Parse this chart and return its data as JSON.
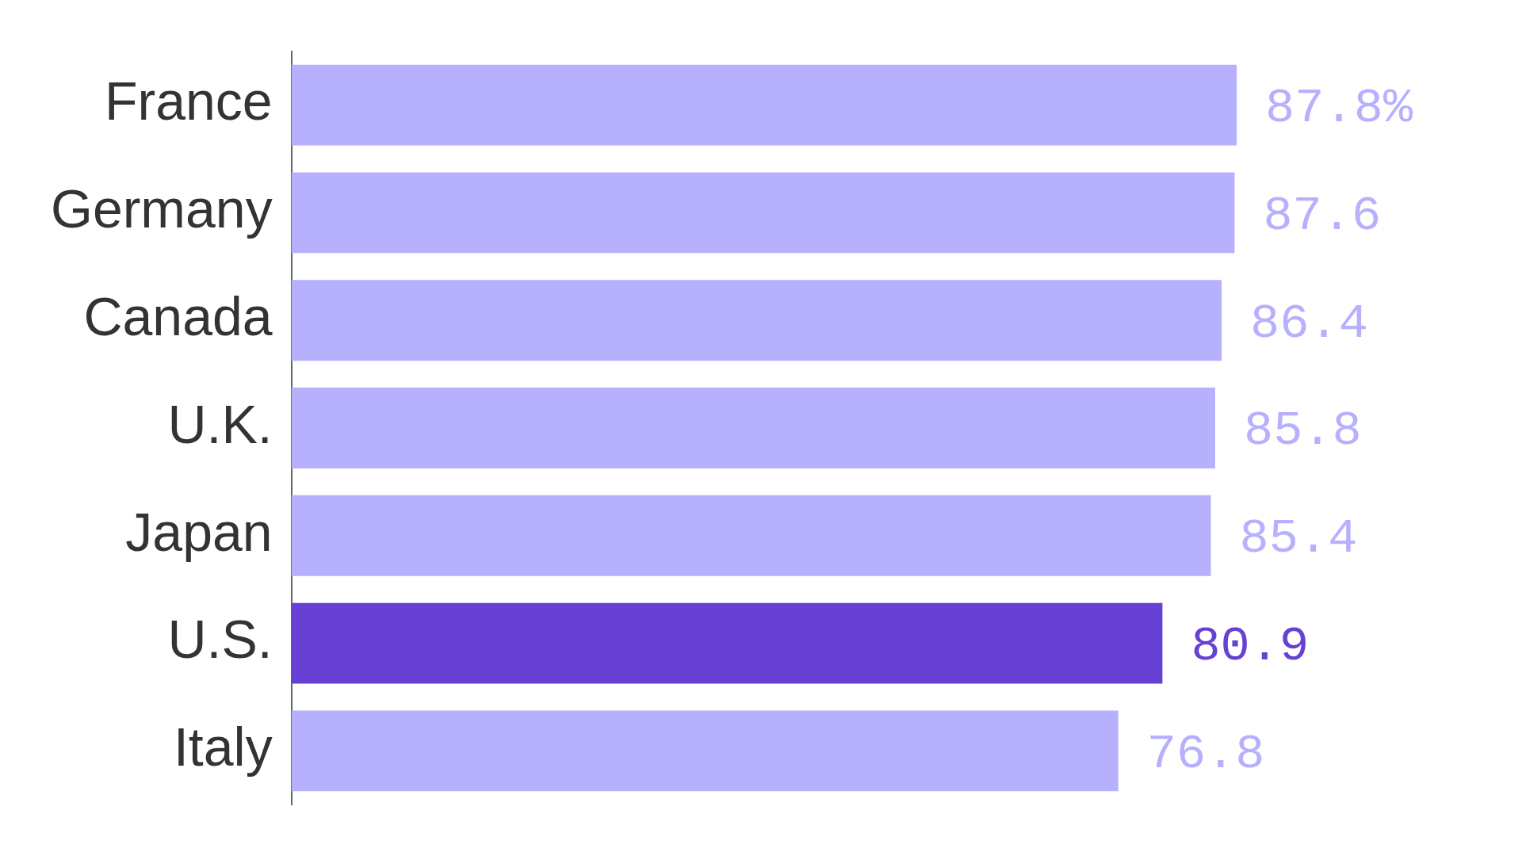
{
  "chart_data": {
    "type": "bar",
    "orientation": "horizontal",
    "categories": [
      "France",
      "Germany",
      "Canada",
      "U.K.",
      "Japan",
      "U.S.",
      "Italy"
    ],
    "values": [
      87.8,
      87.6,
      86.4,
      85.8,
      85.4,
      80.9,
      76.8
    ],
    "colors": [
      "#b7b0fd",
      "#b7b0fd",
      "#b7b0fd",
      "#b7b0fd",
      "#b7b0fd",
      "#6741d3",
      "#b7b0fd"
    ],
    "value_labels": [
      "87.8%",
      "87.6",
      "86.4",
      "85.8",
      "85.4",
      "80.9",
      "76.8"
    ],
    "tick_labels": "y",
    "grid": false,
    "legend": false
  }
}
